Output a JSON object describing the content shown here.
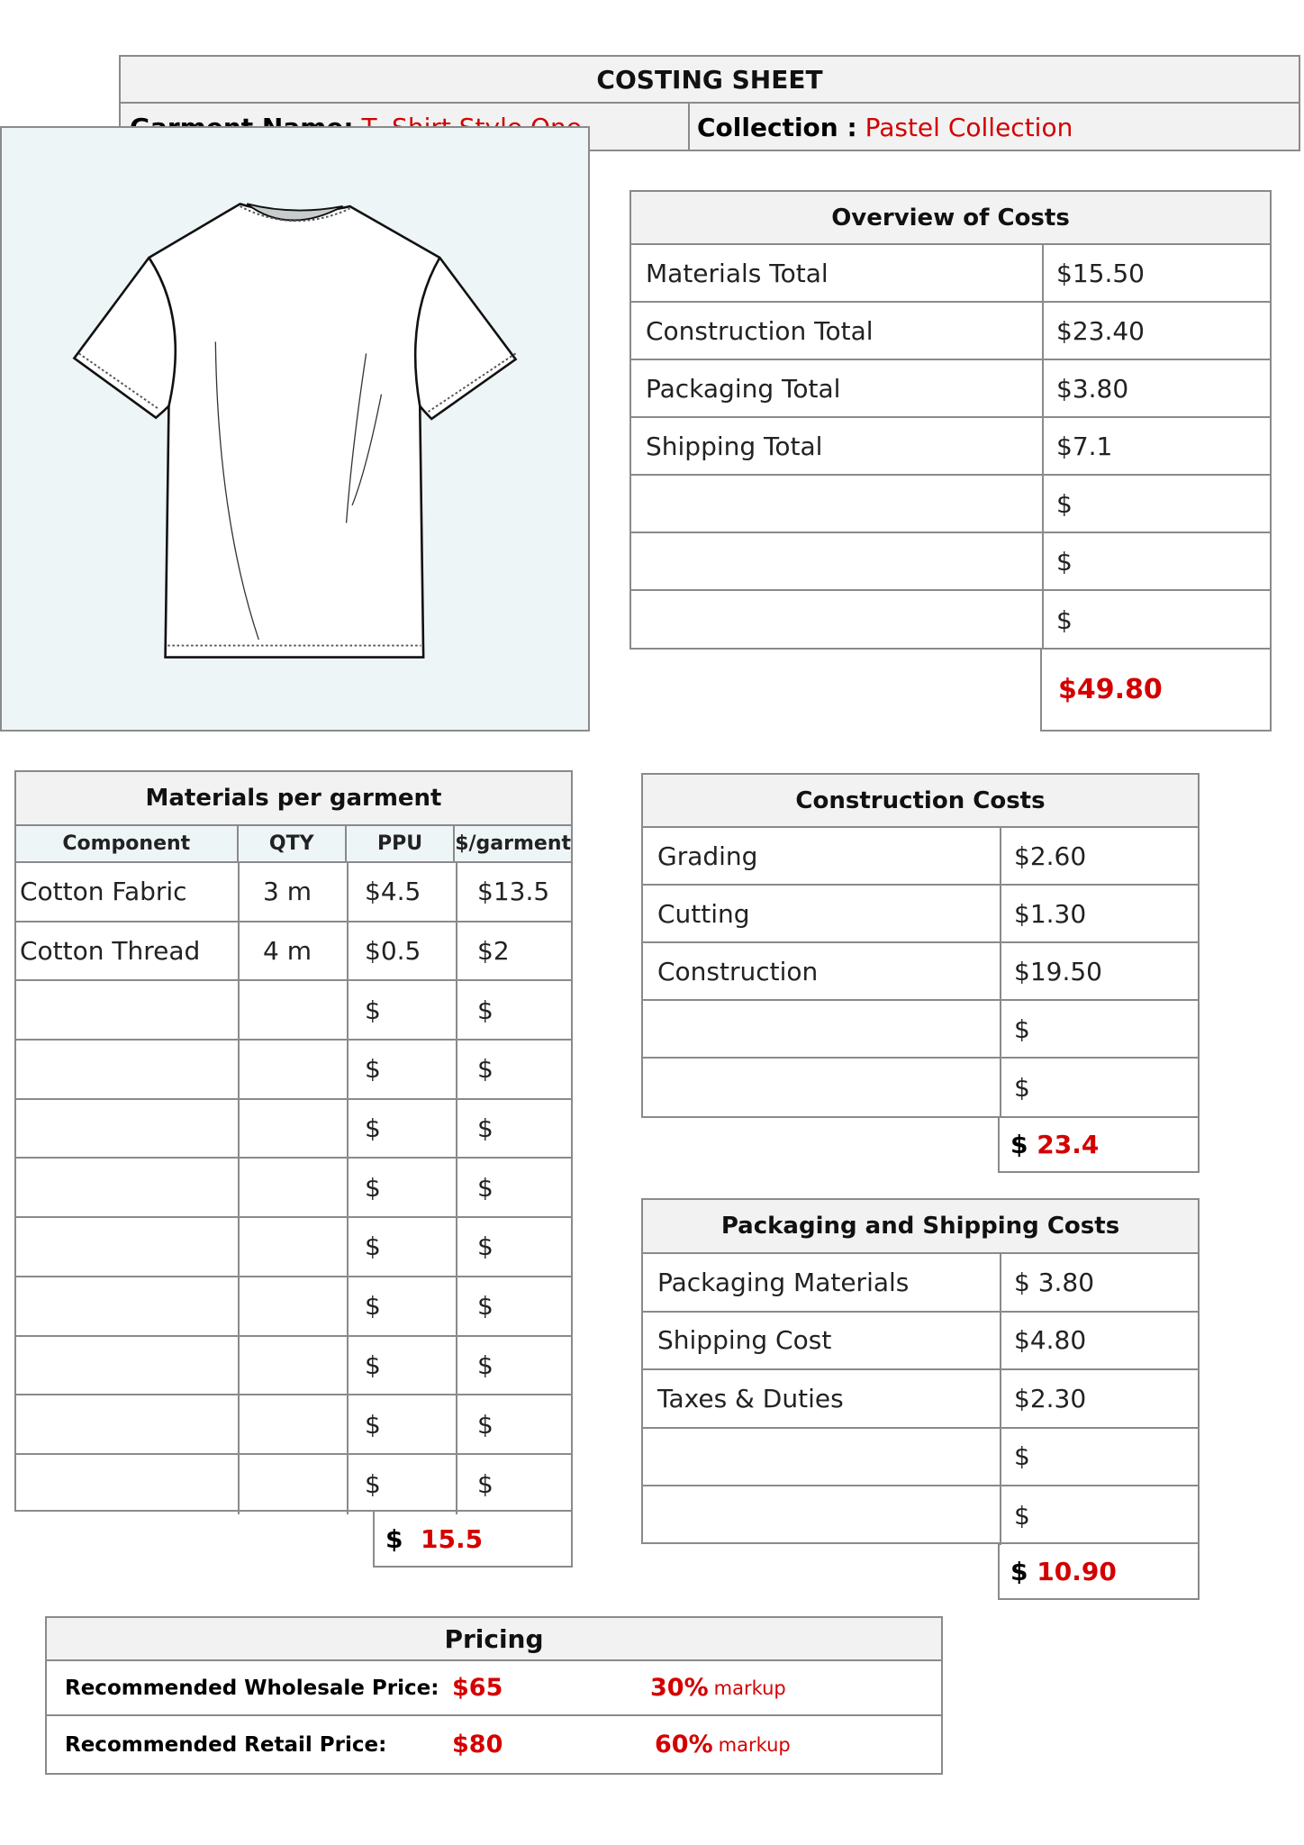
{
  "header": {
    "title": "COSTING SHEET",
    "garment_label": "Garment Name:",
    "garment_value": "T- Shirt Style One",
    "collection_label": "Collection :",
    "collection_value": "Pastel Collection"
  },
  "colors": {
    "accent_red": "#d40000",
    "header_bg": "#f2f2f2",
    "image_bg": "#eef5f7",
    "border": "#8a8a8a"
  },
  "overview": {
    "title": "Overview of Costs",
    "rows": [
      {
        "label": "Materials Total",
        "value": "$15.50"
      },
      {
        "label": "Construction Total",
        "value": "$23.40"
      },
      {
        "label": "Packaging Total",
        "value": "$3.80"
      },
      {
        "label": "Shipping Total",
        "value": "$7.1"
      },
      {
        "label": "",
        "value": "$"
      },
      {
        "label": "",
        "value": "$"
      },
      {
        "label": "",
        "value": "$"
      }
    ],
    "total": "$49.80"
  },
  "materials": {
    "title": "Materials per garment",
    "columns": [
      "Component",
      "QTY",
      "PPU",
      "$/garment"
    ],
    "rows": [
      [
        "Cotton Fabric",
        "3 m",
        "$4.5",
        "$13.5"
      ],
      [
        "Cotton Thread",
        "4 m",
        "$0.5",
        "$2"
      ],
      [
        "",
        "",
        "$",
        "$"
      ],
      [
        "",
        "",
        "$",
        "$"
      ],
      [
        "",
        "",
        "$",
        "$"
      ],
      [
        "",
        "",
        "$",
        "$"
      ],
      [
        "",
        "",
        "$",
        "$"
      ],
      [
        "",
        "",
        "$",
        "$"
      ],
      [
        "",
        "",
        "$",
        "$"
      ],
      [
        "",
        "",
        "$",
        "$"
      ],
      [
        "",
        "",
        "$",
        "$"
      ]
    ],
    "total_symbol": "$",
    "total_value": "15.5"
  },
  "construction": {
    "title": "Construction Costs",
    "rows": [
      {
        "label": "Grading",
        "value": "$2.60"
      },
      {
        "label": "Cutting",
        "value": "$1.30"
      },
      {
        "label": "Construction",
        "value": "$19.50"
      },
      {
        "label": "",
        "value": "$"
      },
      {
        "label": "",
        "value": "$"
      }
    ],
    "total_symbol": "$",
    "total_value": "23.4"
  },
  "packaging": {
    "title": "Packaging and Shipping Costs",
    "rows": [
      {
        "label": "Packaging Materials",
        "value": "$ 3.80"
      },
      {
        "label": "Shipping Cost",
        "value": "$4.80"
      },
      {
        "label": "Taxes & Duties",
        "value": "$2.30"
      },
      {
        "label": "",
        "value": "$"
      },
      {
        "label": "",
        "value": "$"
      }
    ],
    "total_symbol": "$",
    "total_value": "10.90"
  },
  "pricing": {
    "title": "Pricing",
    "rows": [
      {
        "label": "Recommended Wholesale Price:",
        "price": "$65",
        "pct": "30%",
        "markup": "markup"
      },
      {
        "label": "Recommended Retail Price:",
        "price": "$80",
        "pct": "60%",
        "markup": "markup"
      }
    ]
  }
}
